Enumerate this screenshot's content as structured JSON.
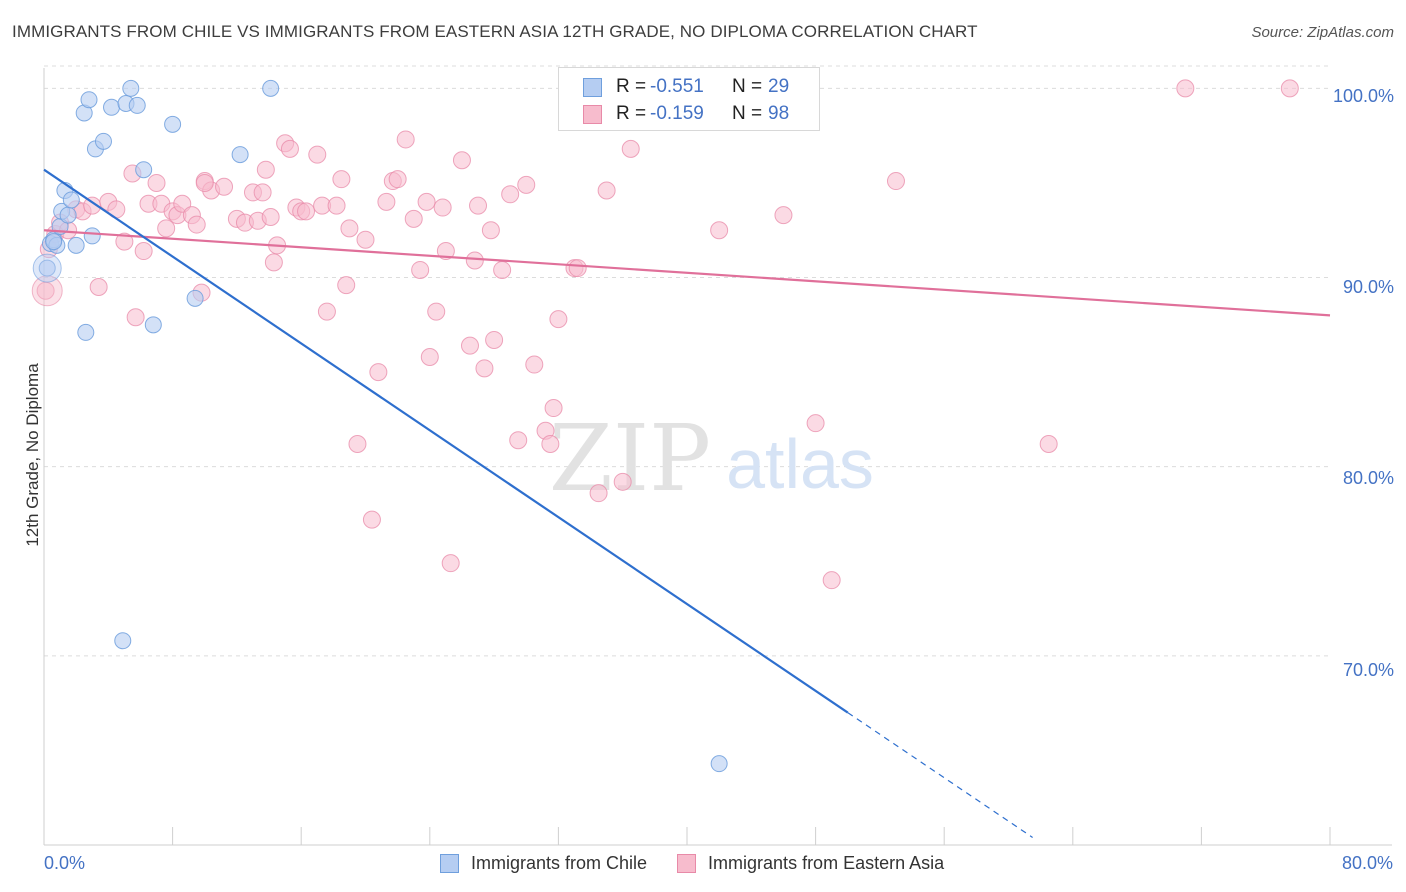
{
  "title": "IMMIGRANTS FROM CHILE VS IMMIGRANTS FROM EASTERN ASIA 12TH GRADE, NO DIPLOMA CORRELATION CHART",
  "source": "Source: ZipAtlas.com",
  "watermark": {
    "zip": "ZIP",
    "atlas": "atlas"
  },
  "colors": {
    "blue_fill": "#b5cdf2",
    "blue_stroke": "#6f9fdd",
    "blue_line": "#2e6fce",
    "pink_fill": "#f7bccd",
    "pink_stroke": "#e88aa8",
    "pink_line": "#e0709a",
    "grid": "#dcdcdc",
    "tick_text": "#4472c4"
  },
  "legend": {
    "rows": [
      {
        "r_label": "R =",
        "r_value": "-0.551",
        "n_label": "N =",
        "n_value": "29"
      },
      {
        "r_label": "R =",
        "r_value": "-0.159",
        "n_label": "N =",
        "n_value": "98"
      }
    ]
  },
  "chart_data": {
    "type": "scatter",
    "title": "IMMIGRANTS FROM CHILE VS IMMIGRANTS FROM EASTERN ASIA 12TH GRADE, NO DIPLOMA CORRELATION CHART",
    "xlabel": "",
    "ylabel": "12th Grade, No Diploma",
    "xlim": [
      0,
      80
    ],
    "ylim": [
      60,
      101.5
    ],
    "x_tick_labels": [
      "0.0%",
      "80.0%"
    ],
    "y_ticks": [
      70,
      80,
      90,
      100
    ],
    "y_tick_labels": [
      "70.0%",
      "80.0%",
      "90.0%",
      "100.0%"
    ],
    "grid": "horizontal-dashed",
    "legend_position": "top-center",
    "series": [
      {
        "name": "Immigrants from Chile",
        "color": "#b5cdf2",
        "points": [
          [
            0.2,
            90.5
          ],
          [
            0.4,
            91.8
          ],
          [
            0.6,
            92.0
          ],
          [
            0.8,
            91.7
          ],
          [
            1.0,
            92.7
          ],
          [
            1.1,
            93.5
          ],
          [
            1.3,
            94.6
          ],
          [
            1.5,
            93.3
          ],
          [
            1.7,
            94.1
          ],
          [
            2.0,
            91.7
          ],
          [
            2.5,
            98.7
          ],
          [
            2.8,
            99.4
          ],
          [
            3.0,
            92.2
          ],
          [
            3.2,
            96.8
          ],
          [
            3.7,
            97.2
          ],
          [
            4.2,
            99.0
          ],
          [
            5.1,
            99.2
          ],
          [
            5.4,
            100.0
          ],
          [
            5.8,
            99.1
          ],
          [
            6.2,
            95.7
          ],
          [
            6.8,
            87.5
          ],
          [
            8.0,
            98.1
          ],
          [
            9.4,
            88.9
          ],
          [
            12.2,
            96.5
          ],
          [
            14.1,
            100.0
          ],
          [
            2.6,
            87.1
          ],
          [
            4.9,
            70.8
          ],
          [
            42.0,
            64.3
          ],
          [
            0.6,
            91.9
          ]
        ],
        "trend": {
          "x0": 0,
          "y0": 95.7,
          "x1": 50,
          "y1": 67.0,
          "dashed_to_x": 61.5
        }
      },
      {
        "name": "Immigrants from Eastern Asia",
        "color": "#f7bccd",
        "points": [
          [
            0.1,
            89.3
          ],
          [
            0.3,
            91.5
          ],
          [
            0.7,
            92.3
          ],
          [
            1.0,
            92.9
          ],
          [
            1.5,
            92.5
          ],
          [
            2.0,
            93.6
          ],
          [
            2.4,
            93.5
          ],
          [
            3.0,
            93.8
          ],
          [
            3.4,
            89.5
          ],
          [
            4.0,
            94.0
          ],
          [
            4.5,
            93.6
          ],
          [
            5.0,
            91.9
          ],
          [
            5.5,
            95.5
          ],
          [
            5.7,
            87.9
          ],
          [
            6.2,
            91.4
          ],
          [
            6.5,
            93.9
          ],
          [
            7.0,
            95.0
          ],
          [
            7.3,
            93.9
          ],
          [
            7.6,
            92.6
          ],
          [
            8.0,
            93.5
          ],
          [
            8.3,
            93.3
          ],
          [
            8.6,
            93.9
          ],
          [
            9.2,
            93.3
          ],
          [
            9.5,
            92.8
          ],
          [
            9.8,
            89.2
          ],
          [
            10.0,
            95.1
          ],
          [
            10.4,
            94.6
          ],
          [
            11.2,
            94.8
          ],
          [
            12.0,
            93.1
          ],
          [
            12.5,
            92.9
          ],
          [
            13.0,
            94.5
          ],
          [
            13.3,
            93.0
          ],
          [
            13.8,
            95.7
          ],
          [
            14.1,
            93.2
          ],
          [
            14.3,
            90.8
          ],
          [
            14.5,
            91.7
          ],
          [
            15.0,
            97.1
          ],
          [
            15.3,
            96.8
          ],
          [
            15.7,
            93.7
          ],
          [
            16.0,
            93.5
          ],
          [
            16.3,
            93.5
          ],
          [
            17.0,
            96.5
          ],
          [
            17.3,
            93.8
          ],
          [
            17.6,
            88.2
          ],
          [
            18.2,
            93.8
          ],
          [
            18.5,
            95.2
          ],
          [
            18.8,
            89.6
          ],
          [
            19.0,
            92.6
          ],
          [
            19.5,
            81.2
          ],
          [
            20.0,
            92.0
          ],
          [
            20.4,
            77.2
          ],
          [
            20.8,
            85.0
          ],
          [
            21.3,
            94.0
          ],
          [
            21.7,
            95.1
          ],
          [
            22.0,
            95.2
          ],
          [
            22.5,
            97.3
          ],
          [
            23.0,
            93.1
          ],
          [
            23.4,
            90.4
          ],
          [
            23.8,
            94.0
          ],
          [
            24.0,
            85.8
          ],
          [
            24.4,
            88.2
          ],
          [
            24.8,
            93.7
          ],
          [
            25.0,
            91.4
          ],
          [
            25.3,
            74.9
          ],
          [
            26.0,
            96.2
          ],
          [
            26.5,
            86.4
          ],
          [
            26.8,
            90.9
          ],
          [
            27.0,
            93.8
          ],
          [
            27.4,
            85.2
          ],
          [
            27.8,
            92.5
          ],
          [
            28.0,
            86.7
          ],
          [
            28.5,
            90.4
          ],
          [
            29.0,
            94.4
          ],
          [
            29.5,
            81.4
          ],
          [
            30.0,
            94.9
          ],
          [
            30.5,
            85.4
          ],
          [
            31.2,
            81.9
          ],
          [
            31.5,
            81.2
          ],
          [
            31.7,
            83.1
          ],
          [
            32.0,
            87.8
          ],
          [
            33.0,
            90.5
          ],
          [
            33.2,
            90.5
          ],
          [
            34.5,
            78.6
          ],
          [
            35.0,
            94.6
          ],
          [
            36.0,
            79.2
          ],
          [
            36.5,
            96.8
          ],
          [
            38.0,
            100.0
          ],
          [
            42.0,
            92.5
          ],
          [
            43.0,
            100.0
          ],
          [
            46.0,
            93.3
          ],
          [
            48.0,
            82.3
          ],
          [
            49.0,
            74.0
          ],
          [
            53.0,
            95.1
          ],
          [
            62.5,
            81.2
          ],
          [
            71.0,
            100.0
          ],
          [
            77.5,
            100.0
          ],
          [
            10.0,
            95.0
          ],
          [
            13.6,
            94.5
          ]
        ],
        "trend": {
          "x0": 0,
          "y0": 92.5,
          "x1": 80,
          "y1": 88.0
        }
      }
    ]
  },
  "bottom_legend": [
    {
      "label": "Immigrants from Chile"
    },
    {
      "label": "Immigrants from Eastern Asia"
    }
  ]
}
